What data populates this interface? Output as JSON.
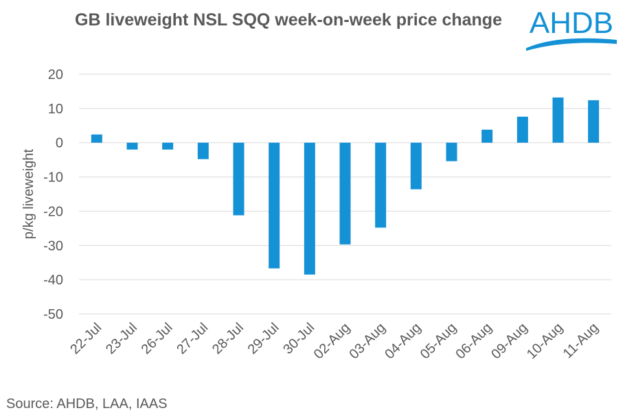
{
  "logo_text": "AHDB",
  "source": "Source: AHDB, LAA, IAAS",
  "colors": {
    "bar": "#1591D6",
    "logo": "#1591D6",
    "text": "#595959",
    "grid": "#D9D9D9"
  },
  "chart_data": {
    "type": "bar",
    "title": "GB liveweight NSL SQQ week-on-week price change",
    "xlabel": "",
    "ylabel": "p/kg liveweight",
    "ylim": [
      -50,
      20
    ],
    "yticks": [
      20,
      10,
      0,
      -10,
      -20,
      -30,
      -40,
      -50
    ],
    "grid": "horizontal",
    "categories": [
      "22-Jul",
      "23-Jul",
      "26-Jul",
      "27-Jul",
      "28-Jul",
      "29-Jul",
      "30-Jul",
      "02-Aug",
      "03-Aug",
      "04-Aug",
      "05-Aug",
      "06-Aug",
      "09-Aug",
      "10-Aug",
      "11-Aug"
    ],
    "values": [
      2.4,
      -2.0,
      -2.0,
      -4.8,
      -21.2,
      -36.7,
      -38.5,
      -29.7,
      -24.8,
      -13.6,
      -5.4,
      3.8,
      7.6,
      13.2,
      12.4
    ]
  }
}
